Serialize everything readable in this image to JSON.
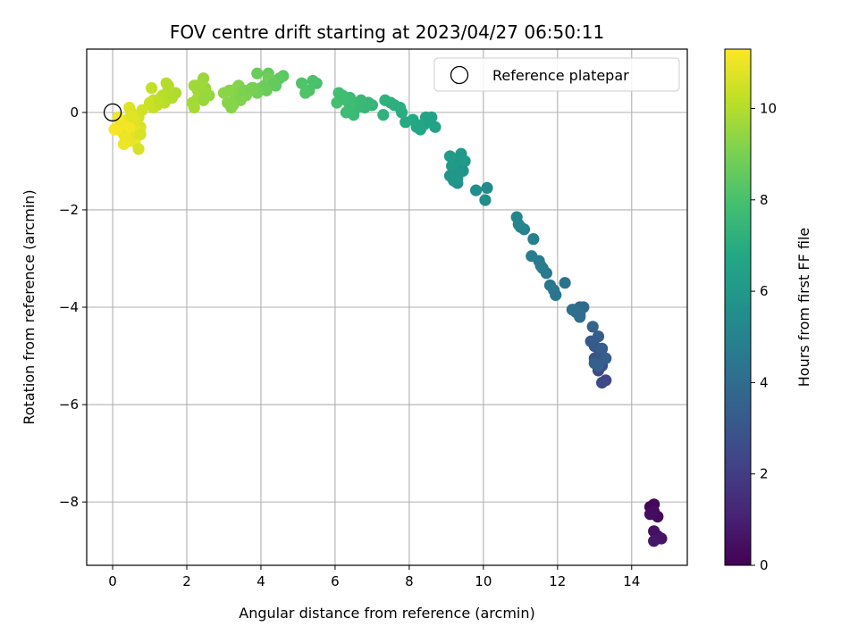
{
  "chart_data": {
    "type": "scatter",
    "title": "FOV centre drift starting at 2023/04/27 06:50:11",
    "xlabel": "Angular distance from reference (arcmin)",
    "ylabel": "Rotation from reference (arcmin)",
    "xlim": [
      -0.7,
      15.5
    ],
    "ylim": [
      -9.3,
      1.3
    ],
    "xticks": [
      "0",
      "2",
      "4",
      "6",
      "8",
      "10",
      "12",
      "14"
    ],
    "yticks": [
      "0",
      "−2",
      "−4",
      "−6",
      "−8"
    ],
    "grid": true,
    "legend": {
      "placement": "top-right",
      "entries": [
        "Reference platepar"
      ]
    },
    "colorbar": {
      "label": "Hours from first FF file",
      "range": [
        0,
        11.3
      ],
      "ticks": [
        "0",
        "2",
        "4",
        "6",
        "8",
        "10"
      ],
      "colormap": "viridis"
    },
    "reference_point": {
      "x": 0,
      "y": 0
    },
    "series": [
      {
        "x": [
          14.5,
          14.6,
          14.7,
          14.6,
          14.5,
          14.6,
          14.7,
          14.8,
          14.6
        ],
        "y": [
          -8.1,
          -8.05,
          -8.3,
          -8.2,
          -8.25,
          -8.6,
          -8.7,
          -8.75,
          -8.8
        ],
        "hours": [
          0.1,
          0.2,
          0.3,
          0.35,
          0.4,
          0.5,
          0.55,
          0.6,
          0.7
        ]
      },
      {
        "x": [
          13.3,
          13.2,
          13.1,
          13.2,
          13.1,
          13.0,
          13.2,
          13.1,
          13.0,
          12.9,
          13.1,
          13.2,
          13.3,
          13.0,
          13.1,
          12.95
        ],
        "y": [
          -5.5,
          -5.55,
          -5.3,
          -5.2,
          -5.1,
          -5.05,
          -5.0,
          -4.85,
          -4.8,
          -4.7,
          -4.6,
          -4.85,
          -5.05,
          -5.15,
          -5.2,
          -4.4
        ],
        "hours": [
          2.4,
          2.5,
          2.6,
          2.7,
          2.8,
          2.9,
          3.0,
          3.05,
          3.1,
          3.2,
          3.25,
          3.3,
          3.35,
          3.4,
          3.45,
          3.6
        ]
      },
      {
        "x": [
          12.6,
          12.5,
          12.7,
          12.6,
          12.5,
          12.6,
          12.4,
          12.2,
          11.95,
          11.9,
          11.8,
          11.7,
          11.6,
          11.5,
          11.55,
          11.3,
          11.35,
          11.1,
          11.0,
          10.9,
          10.95
        ],
        "y": [
          -4.0,
          -4.1,
          -4.0,
          -4.2,
          -4.05,
          -4.15,
          -4.05,
          -3.5,
          -3.75,
          -3.65,
          -3.55,
          -3.3,
          -3.2,
          -3.05,
          -3.15,
          -2.95,
          -2.6,
          -2.4,
          -2.35,
          -2.15,
          -2.3
        ],
        "hours": [
          3.8,
          3.9,
          3.85,
          3.95,
          4.0,
          4.05,
          4.1,
          4.3,
          4.4,
          4.45,
          4.5,
          4.55,
          4.6,
          4.65,
          4.7,
          4.8,
          4.9,
          5.0,
          5.05,
          5.1,
          5.15
        ]
      },
      {
        "x": [
          10.1,
          10.05,
          9.8,
          9.3,
          9.2,
          9.1,
          9.2,
          9.3,
          9.25,
          9.35,
          9.4,
          9.5,
          9.15,
          9.1,
          9.3,
          9.45,
          9.2,
          9.3
        ],
        "y": [
          -1.55,
          -1.8,
          -1.6,
          -1.45,
          -1.35,
          -1.3,
          -1.25,
          -1.15,
          -1.05,
          -0.95,
          -0.85,
          -1.0,
          -1.1,
          -0.9,
          -1.3,
          -1.2,
          -1.4,
          -1.35
        ],
        "hours": [
          5.4,
          5.45,
          5.5,
          5.7,
          5.75,
          5.8,
          5.85,
          5.9,
          5.95,
          6.0,
          6.05,
          6.1,
          6.15,
          6.2,
          5.8,
          5.85,
          5.9,
          5.95
        ]
      },
      {
        "x": [
          8.7,
          8.6,
          8.5,
          8.4,
          8.3,
          8.2,
          8.1,
          7.9,
          7.8,
          7.75,
          7.6,
          7.5,
          7.35,
          7.3,
          8.35,
          8.45,
          8.55
        ],
        "y": [
          -0.3,
          -0.1,
          -0.2,
          -0.25,
          -0.35,
          -0.3,
          -0.15,
          -0.2,
          0.0,
          0.1,
          0.15,
          0.2,
          0.25,
          -0.05,
          -0.25,
          -0.1,
          -0.2
        ],
        "hours": [
          6.5,
          6.55,
          6.6,
          6.65,
          6.7,
          6.75,
          6.8,
          6.9,
          7.0,
          7.05,
          7.1,
          7.15,
          7.2,
          7.25,
          6.7,
          6.6,
          6.55
        ]
      },
      {
        "x": [
          7.0,
          6.9,
          6.8,
          6.7,
          6.6,
          6.5,
          6.4,
          6.3,
          6.2,
          6.1,
          6.05,
          6.5,
          6.6,
          6.3,
          6.4,
          6.2
        ],
        "y": [
          0.15,
          0.2,
          0.1,
          0.25,
          0.2,
          0.05,
          0.3,
          0.25,
          0.35,
          0.4,
          0.2,
          -0.05,
          0.1,
          0.0,
          0.15,
          0.3
        ],
        "hours": [
          7.4,
          7.45,
          7.5,
          7.55,
          7.6,
          7.65,
          7.7,
          7.75,
          7.8,
          7.85,
          7.9,
          7.6,
          7.55,
          7.7,
          7.75,
          7.8
        ]
      },
      {
        "x": [
          5.5,
          5.4,
          5.3,
          5.1,
          5.2,
          4.6,
          4.5,
          4.4,
          4.3,
          4.2,
          4.1,
          3.9,
          4.0,
          4.2,
          4.35,
          4.15
        ],
        "y": [
          0.6,
          0.65,
          0.45,
          0.6,
          0.4,
          0.75,
          0.7,
          0.55,
          0.65,
          0.8,
          0.55,
          0.8,
          0.5,
          0.7,
          0.6,
          0.45
        ],
        "hours": [
          8.0,
          8.05,
          8.1,
          8.15,
          8.2,
          8.4,
          8.45,
          8.5,
          8.55,
          8.6,
          8.65,
          8.7,
          8.75,
          8.8,
          8.6,
          8.7
        ]
      },
      {
        "x": [
          3.9,
          3.8,
          3.7,
          3.6,
          3.5,
          3.4,
          3.3,
          3.2,
          3.1,
          3.0,
          3.35,
          3.45,
          3.25,
          3.15,
          3.55,
          3.75
        ],
        "y": [
          0.4,
          0.5,
          0.45,
          0.35,
          0.4,
          0.55,
          0.3,
          0.1,
          0.2,
          0.4,
          0.5,
          0.25,
          0.15,
          0.45,
          0.45,
          0.5
        ],
        "hours": [
          8.9,
          8.95,
          9.0,
          9.05,
          9.1,
          9.15,
          9.2,
          9.25,
          9.3,
          9.35,
          9.2,
          9.1,
          9.25,
          9.3,
          9.05,
          9.0
        ]
      },
      {
        "x": [
          2.6,
          2.5,
          2.45,
          2.4,
          2.3,
          2.2,
          2.15,
          2.2,
          2.3,
          2.5,
          2.35,
          2.45
        ],
        "y": [
          0.35,
          0.5,
          0.7,
          0.6,
          0.45,
          0.55,
          0.2,
          0.1,
          0.3,
          0.4,
          0.55,
          0.25
        ],
        "hours": [
          9.45,
          9.5,
          9.55,
          9.6,
          9.65,
          9.7,
          9.75,
          9.8,
          9.75,
          9.6,
          9.65,
          9.55
        ]
      },
      {
        "x": [
          1.7,
          1.6,
          1.5,
          1.45,
          1.4,
          1.3,
          1.2,
          1.1,
          1.05,
          1.1,
          1.0,
          1.5,
          1.35,
          1.25
        ],
        "y": [
          0.4,
          0.3,
          0.45,
          0.6,
          0.2,
          0.3,
          0.15,
          0.25,
          0.5,
          0.1,
          0.2,
          0.55,
          0.35,
          0.2
        ],
        "hours": [
          9.9,
          9.95,
          10.0,
          10.05,
          10.1,
          10.15,
          10.2,
          10.25,
          10.3,
          10.35,
          10.4,
          10.0,
          10.1,
          10.2
        ]
      },
      {
        "x": [
          0.8,
          0.7,
          0.75,
          0.6,
          0.55,
          0.5,
          0.45,
          0.4,
          0.35,
          0.3,
          0.25,
          0.2,
          0.15,
          0.1,
          0.05,
          0.45,
          0.5,
          0.55,
          0.6,
          0.65,
          0.7,
          0.35,
          0.4,
          0.3,
          0.5,
          0.6,
          0.7,
          0.75,
          0.45,
          0.55
        ],
        "y": [
          0.05,
          -0.1,
          -0.3,
          -0.2,
          -0.35,
          -0.05,
          0.1,
          -0.15,
          -0.25,
          -0.45,
          -0.3,
          -0.2,
          -0.1,
          -0.35,
          -0.35,
          -0.4,
          -0.5,
          -0.25,
          -0.6,
          -0.45,
          -0.75,
          -0.55,
          -0.6,
          -0.65,
          0.0,
          -0.15,
          -0.4,
          -0.45,
          -0.3,
          -0.1
        ],
        "hours": [
          10.5,
          10.55,
          10.6,
          10.65,
          10.7,
          10.75,
          10.8,
          10.85,
          10.9,
          10.95,
          11.0,
          11.05,
          11.1,
          11.15,
          11.2,
          10.9,
          11.0,
          10.85,
          10.95,
          10.8,
          10.6,
          11.0,
          10.95,
          11.05,
          10.7,
          10.75,
          10.9,
          10.65,
          11.1,
          10.8
        ]
      }
    ]
  }
}
